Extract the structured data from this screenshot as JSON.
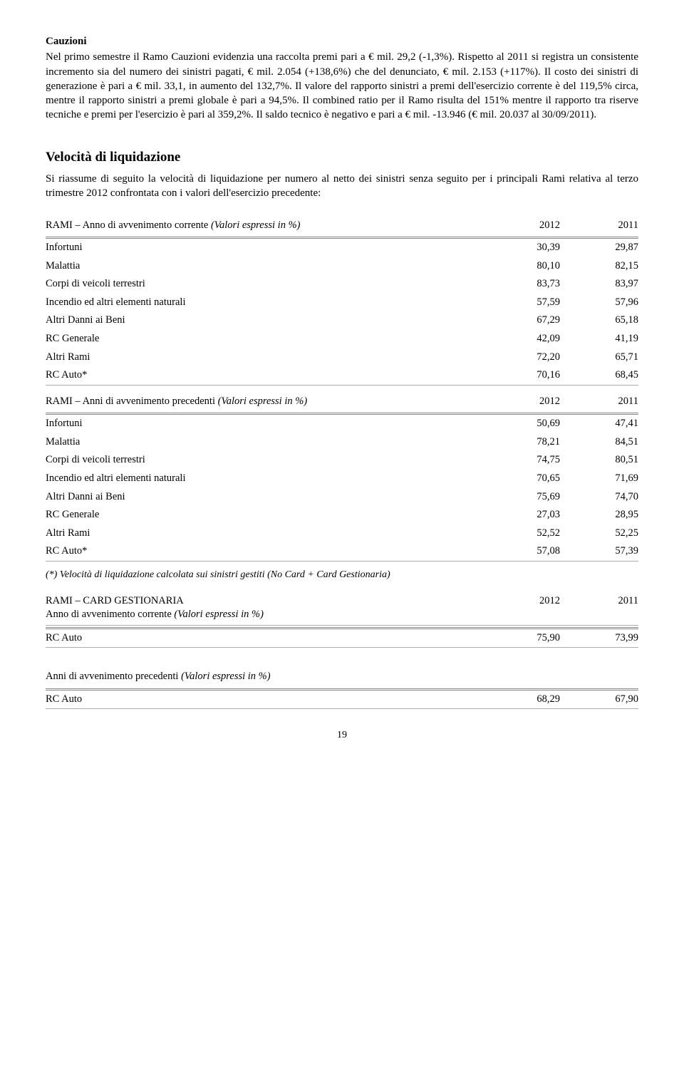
{
  "cauzioni": {
    "title": "Cauzioni",
    "text": "Nel primo semestre il Ramo Cauzioni evidenzia una raccolta premi pari a € mil. 29,2 (-1,3%). Rispetto al 2011 si registra un consistente incremento sia del numero dei sinistri pagati, € mil. 2.054 (+138,6%) che del denunciato, € mil. 2.153 (+117%). Il costo dei sinistri di generazione è pari a € mil. 33,1, in aumento del 132,7%. Il valore del rapporto sinistri a premi dell'esercizio corrente è del 119,5% circa, mentre il rapporto sinistri a premi globale è pari a 94,5%. Il combined ratio per il Ramo risulta del 151% mentre il rapporto tra riserve tecniche e premi per l'esercizio è pari al 359,2%. Il saldo tecnico è negativo e pari a € mil. -13.946 (€ mil. 20.037 al 30/09/2011)."
  },
  "velocita": {
    "title": "Velocità di liquidazione",
    "intro": "Si riassume di seguito la velocità di liquidazione per numero al netto dei sinistri senza seguito per i principali Rami relativa al terzo trimestre 2012 confrontata con i valori dell'esercizio precedente:"
  },
  "table1": {
    "header_label": "RAMI – Anno di avvenimento corrente ",
    "header_ital": "(Valori espressi in %)",
    "col1": "2012",
    "col2": "2011",
    "rows": [
      {
        "label": "Infortuni",
        "v1": "30,39",
        "v2": "29,87"
      },
      {
        "label": "Malattia",
        "v1": "80,10",
        "v2": "82,15"
      },
      {
        "label": "Corpi di veicoli terrestri",
        "v1": "83,73",
        "v2": "83,97"
      },
      {
        "label": "Incendio ed altri elementi naturali",
        "v1": "57,59",
        "v2": "57,96"
      },
      {
        "label": "Altri Danni ai Beni",
        "v1": "67,29",
        "v2": "65,18"
      },
      {
        "label": "RC Generale",
        "v1": "42,09",
        "v2": "41,19"
      },
      {
        "label": "Altri Rami",
        "v1": "72,20",
        "v2": "65,71"
      },
      {
        "label": "RC Auto*",
        "v1": "70,16",
        "v2": "68,45"
      }
    ]
  },
  "table2": {
    "header_label": "RAMI – Anni di avvenimento precedenti ",
    "header_ital": "(Valori espressi in %)",
    "col1": "2012",
    "col2": "2011",
    "rows": [
      {
        "label": "Infortuni",
        "v1": "50,69",
        "v2": "47,41"
      },
      {
        "label": "Malattia",
        "v1": "78,21",
        "v2": "84,51"
      },
      {
        "label": "Corpi di veicoli terrestri",
        "v1": "74,75",
        "v2": "80,51"
      },
      {
        "label": "Incendio ed altri elementi naturali",
        "v1": "70,65",
        "v2": "71,69"
      },
      {
        "label": "Altri Danni ai Beni",
        "v1": "75,69",
        "v2": "74,70"
      },
      {
        "label": "RC Generale",
        "v1": "27,03",
        "v2": "28,95"
      },
      {
        "label": "Altri Rami",
        "v1": "52,52",
        "v2": "52,25"
      },
      {
        "label": "RC Auto*",
        "v1": "57,08",
        "v2": "57,39"
      }
    ]
  },
  "footnote": "(*) Velocità di liquidazione calcolata sui sinistri gestiti (No Card + Card Gestionaria)",
  "table3": {
    "header_label": "RAMI – CARD GESTIONARIA",
    "header_sub": "Anno di avvenimento corrente ",
    "header_sub_ital": "(Valori espressi in %)",
    "col1": "2012",
    "col2": "2011",
    "rows": [
      {
        "label": "RC Auto",
        "v1": "75,90",
        "v2": "73,99"
      }
    ]
  },
  "table4": {
    "header_label": "Anni di avvenimento precedenti ",
    "header_ital": "(Valori espressi in %)",
    "rows": [
      {
        "label": "RC Auto",
        "v1": "68,29",
        "v2": "67,90"
      }
    ]
  },
  "page_number": "19"
}
